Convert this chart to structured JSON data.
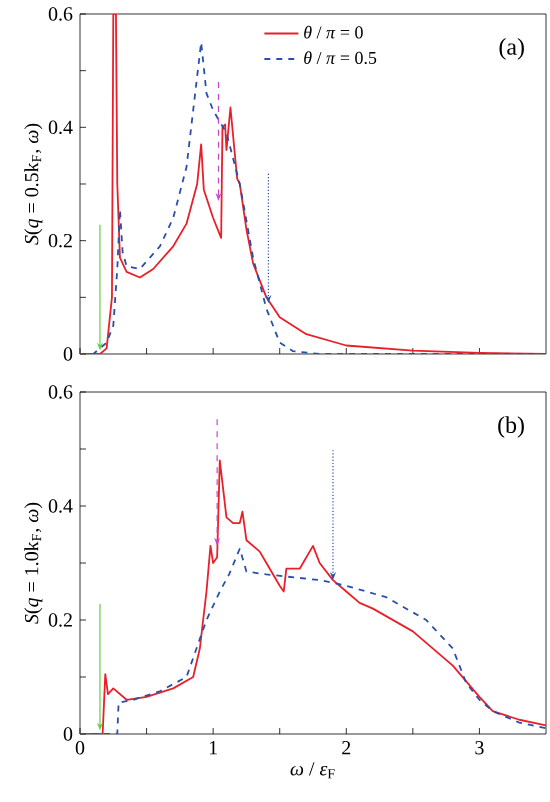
{
  "chart_data": [
    {
      "type": "line",
      "ylabel": "*S*(*q* = 0.5k$_{F}$, *ω*)",
      "xlim": [
        0,
        3.5
      ],
      "ylim": [
        0,
        0.6
      ],
      "xticks": [
        0,
        {
          "value": 0.5,
          "label": null
        },
        1,
        {
          "value": 1.5,
          "label": null
        },
        2,
        {
          "value": 2.5,
          "label": null
        },
        3
      ],
      "yticks": [
        0,
        {
          "value": 0.1,
          "label": null
        },
        0.2,
        {
          "value": 0.3,
          "label": null
        },
        0.4,
        {
          "value": 0.5,
          "label": null
        },
        0.6
      ],
      "tick_labels": "y",
      "legend": "top right",
      "annotations": [
        "(a)"
      ],
      "ref_lines": [
        {
          "axis": "x",
          "value": 0.15,
          "color": "#66cc44",
          "line_style": "solid"
        },
        {
          "axis": "x",
          "value": 1.04,
          "color": "#cc44cc",
          "line_style": "dashed"
        },
        {
          "axis": "x",
          "value": 1.415,
          "color": "#2a4faa",
          "line_style": "dotted"
        }
      ],
      "series": [
        {
          "name": "*θ* / *π* = 0",
          "color": "#e8202a",
          "line_style": "solid",
          "x": [
            0,
            0.15,
            0.2,
            0.24,
            0.25,
            0.27,
            0.28,
            0.3,
            0.35,
            0.45,
            0.55,
            0.7,
            0.8,
            0.88,
            0.91,
            0.93,
            1.0,
            1.06,
            1.07,
            1.09,
            1.1,
            1.13,
            1.16,
            1.18,
            1.2,
            1.25,
            1.3,
            1.4,
            1.5,
            1.7,
            2.0,
            2.5,
            3.0,
            3.5
          ],
          "values": [
            0,
            0,
            0.01,
            0.1,
            0.6,
            0.6,
            0.3,
            0.17,
            0.145,
            0.135,
            0.15,
            0.19,
            0.23,
            0.3,
            0.37,
            0.29,
            0.24,
            0.205,
            0.4,
            0.405,
            0.36,
            0.435,
            0.36,
            0.31,
            0.3,
            0.22,
            0.16,
            0.1,
            0.065,
            0.035,
            0.015,
            0.006,
            0.002,
            0
          ]
        },
        {
          "name": "*θ* / *π* = 0.5",
          "color": "#2a4faa",
          "line_style": "dashed",
          "x": [
            0,
            0.1,
            0.2,
            0.25,
            0.28,
            0.3,
            0.32,
            0.35,
            0.45,
            0.6,
            0.7,
            0.8,
            0.91,
            0.95,
            1.0,
            1.1,
            1.2,
            1.3,
            1.4,
            1.5,
            1.6,
            1.8,
            3.5
          ],
          "values": [
            0,
            0,
            0.02,
            0.05,
            0.15,
            0.255,
            0.18,
            0.155,
            0.15,
            0.19,
            0.24,
            0.33,
            0.55,
            0.46,
            0.43,
            0.39,
            0.3,
            0.17,
            0.08,
            0.02,
            0.005,
            0,
            0
          ]
        }
      ]
    },
    {
      "type": "line",
      "xlabel": "*ω* / *ε*$_{F}$",
      "ylabel": "*S*(*q* = 1.0k$_{F}$, *ω*)",
      "xlim": [
        0,
        3.5
      ],
      "ylim": [
        0,
        0.6
      ],
      "xticks": [
        0,
        {
          "value": 0.5,
          "label": null
        },
        1,
        {
          "value": 1.5,
          "label": null
        },
        2,
        {
          "value": 2.5,
          "label": null
        },
        3
      ],
      "yticks": [
        0,
        {
          "value": 0.1,
          "label": null
        },
        0.2,
        {
          "value": 0.3,
          "label": null
        },
        0.4,
        {
          "value": 0.5,
          "label": null
        },
        0.6
      ],
      "annotations": [
        "(b)"
      ],
      "ref_lines": [
        {
          "axis": "x",
          "value": 0.15,
          "color": "#66cc44",
          "line_style": "solid"
        },
        {
          "axis": "x",
          "value": 1.03,
          "color": "#cc44cc",
          "line_style": "dashed"
        },
        {
          "axis": "x",
          "value": 1.9,
          "color": "#2a4faa",
          "line_style": "dotted"
        }
      ],
      "series": [
        {
          "color": "#e8202a",
          "line_style": "solid",
          "x": [
            0,
            0.17,
            0.19,
            0.21,
            0.25,
            0.3,
            0.35,
            0.5,
            0.7,
            0.85,
            0.9,
            0.95,
            0.98,
            1.0,
            1.03,
            1.05,
            1.08,
            1.1,
            1.15,
            1.2,
            1.22,
            1.25,
            1.35,
            1.4,
            1.45,
            1.5,
            1.53,
            1.55,
            1.65,
            1.7,
            1.75,
            1.8,
            1.9,
            2.0,
            2.1,
            2.2,
            2.5,
            2.8,
            3.0,
            3.1,
            3.3,
            3.5
          ],
          "values": [
            0,
            0,
            0.105,
            0.07,
            0.08,
            0.07,
            0.06,
            0.065,
            0.08,
            0.1,
            0.15,
            0.25,
            0.33,
            0.3,
            0.31,
            0.48,
            0.42,
            0.38,
            0.37,
            0.37,
            0.39,
            0.34,
            0.32,
            0.3,
            0.28,
            0.26,
            0.25,
            0.29,
            0.29,
            0.31,
            0.33,
            0.3,
            0.27,
            0.25,
            0.23,
            0.22,
            0.18,
            0.12,
            0.065,
            0.04,
            0.025,
            0.015
          ]
        },
        {
          "color": "#2a4faa",
          "line_style": "dashed",
          "x": [
            0,
            0.28,
            0.29,
            0.4,
            0.6,
            0.8,
            0.95,
            1.05,
            1.12,
            1.2,
            1.25,
            1.4,
            1.8,
            2.0,
            2.3,
            2.6,
            2.8,
            2.9,
            3.0,
            3.1,
            3.3,
            3.5
          ],
          "values": [
            0,
            0,
            0.055,
            0.06,
            0.075,
            0.1,
            0.2,
            0.25,
            0.28,
            0.325,
            0.285,
            0.28,
            0.27,
            0.26,
            0.24,
            0.2,
            0.15,
            0.09,
            0.06,
            0.04,
            0.02,
            0.01
          ]
        }
      ]
    }
  ]
}
